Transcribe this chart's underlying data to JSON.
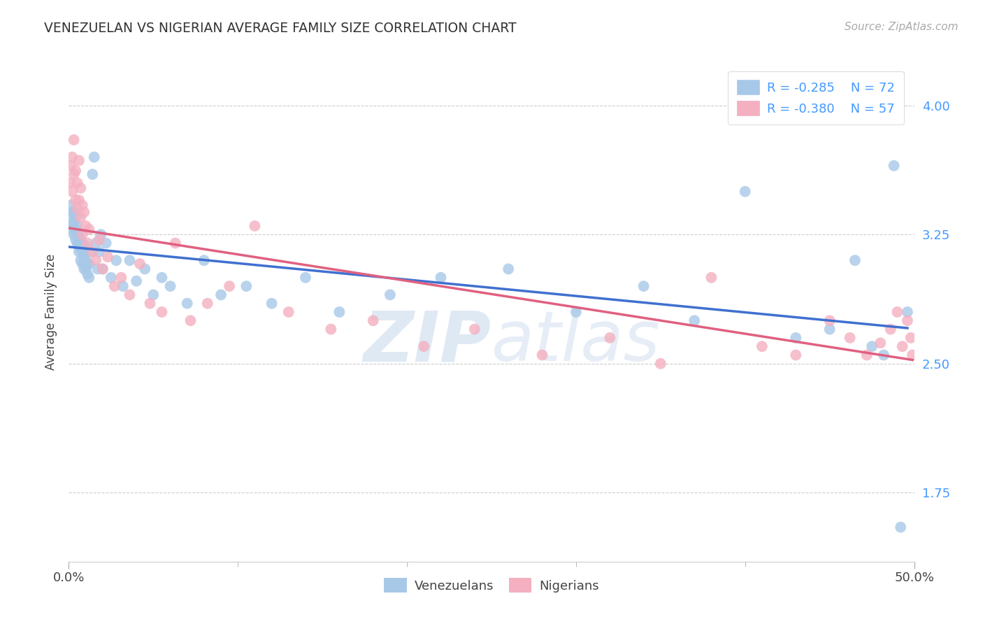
{
  "title": "VENEZUELAN VS NIGERIAN AVERAGE FAMILY SIZE CORRELATION CHART",
  "source": "Source: ZipAtlas.com",
  "ylabel": "Average Family Size",
  "yticks": [
    1.75,
    2.5,
    3.25,
    4.0
  ],
  "xlim": [
    0.0,
    0.5
  ],
  "ylim": [
    1.35,
    4.25
  ],
  "venezuelan_color": "#a8c8e8",
  "nigerian_color": "#f4b0c0",
  "venezuelan_line_color": "#4070d0",
  "nigerian_line_color": "#e06080",
  "legend_R_venezuelan": "-0.285",
  "legend_N_venezuelan": "72",
  "legend_R_nigerian": "-0.380",
  "legend_N_nigerian": "57",
  "watermark_zip": "ZIP",
  "watermark_atlas": "atlas",
  "background_color": "#ffffff",
  "grid_color": "#cccccc",
  "venezuelan_x": [
    0.001,
    0.001,
    0.002,
    0.002,
    0.002,
    0.003,
    0.003,
    0.003,
    0.004,
    0.004,
    0.004,
    0.005,
    0.005,
    0.005,
    0.006,
    0.006,
    0.006,
    0.007,
    0.007,
    0.007,
    0.008,
    0.008,
    0.008,
    0.009,
    0.009,
    0.01,
    0.01,
    0.01,
    0.011,
    0.011,
    0.012,
    0.012,
    0.013,
    0.014,
    0.015,
    0.016,
    0.017,
    0.018,
    0.019,
    0.02,
    0.022,
    0.025,
    0.028,
    0.032,
    0.036,
    0.04,
    0.045,
    0.05,
    0.055,
    0.06,
    0.07,
    0.08,
    0.09,
    0.105,
    0.12,
    0.14,
    0.16,
    0.19,
    0.22,
    0.26,
    0.3,
    0.34,
    0.37,
    0.4,
    0.43,
    0.45,
    0.465,
    0.475,
    0.482,
    0.488,
    0.492,
    0.496
  ],
  "venezuelan_y": [
    3.42,
    3.35,
    3.38,
    3.3,
    3.28,
    3.32,
    3.25,
    3.38,
    3.28,
    3.22,
    3.35,
    3.2,
    3.3,
    3.25,
    3.18,
    3.25,
    3.15,
    3.22,
    3.1,
    3.18,
    3.08,
    3.15,
    3.2,
    3.05,
    3.12,
    3.1,
    3.05,
    3.18,
    3.02,
    3.08,
    3.0,
    3.08,
    3.15,
    3.6,
    3.7,
    3.2,
    3.05,
    3.15,
    3.25,
    3.05,
    3.2,
    3.0,
    3.1,
    2.95,
    3.1,
    2.98,
    3.05,
    2.9,
    3.0,
    2.95,
    2.85,
    3.1,
    2.9,
    2.95,
    2.85,
    3.0,
    2.8,
    2.9,
    3.0,
    3.05,
    2.8,
    2.95,
    2.75,
    3.5,
    2.65,
    2.7,
    3.1,
    2.6,
    2.55,
    3.65,
    1.55,
    2.8
  ],
  "nigerian_x": [
    0.001,
    0.001,
    0.002,
    0.002,
    0.003,
    0.003,
    0.004,
    0.004,
    0.005,
    0.005,
    0.006,
    0.006,
    0.007,
    0.007,
    0.008,
    0.008,
    0.009,
    0.01,
    0.011,
    0.012,
    0.014,
    0.016,
    0.018,
    0.02,
    0.023,
    0.027,
    0.031,
    0.036,
    0.042,
    0.048,
    0.055,
    0.063,
    0.072,
    0.082,
    0.095,
    0.11,
    0.13,
    0.155,
    0.18,
    0.21,
    0.24,
    0.28,
    0.32,
    0.35,
    0.38,
    0.41,
    0.43,
    0.45,
    0.462,
    0.472,
    0.48,
    0.486,
    0.49,
    0.493,
    0.496,
    0.498,
    0.499
  ],
  "nigerian_y": [
    3.55,
    3.65,
    3.7,
    3.5,
    3.8,
    3.6,
    3.62,
    3.45,
    3.55,
    3.4,
    3.68,
    3.45,
    3.52,
    3.35,
    3.42,
    3.25,
    3.38,
    3.3,
    3.2,
    3.28,
    3.15,
    3.1,
    3.22,
    3.05,
    3.12,
    2.95,
    3.0,
    2.9,
    3.08,
    2.85,
    2.8,
    3.2,
    2.75,
    2.85,
    2.95,
    3.3,
    2.8,
    2.7,
    2.75,
    2.6,
    2.7,
    2.55,
    2.65,
    2.5,
    3.0,
    2.6,
    2.55,
    2.75,
    2.65,
    2.55,
    2.62,
    2.7,
    2.8,
    2.6,
    2.75,
    2.65,
    2.55
  ]
}
